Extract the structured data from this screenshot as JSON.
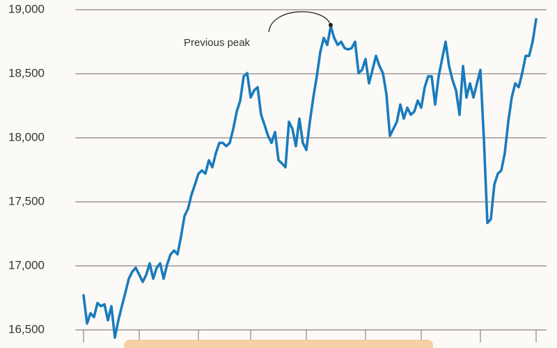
{
  "chart_data": {
    "type": "line",
    "annotations": [
      {
        "text": "Previous peak"
      }
    ],
    "color": "#1a7bbd",
    "grid": true,
    "ylim": [
      16500,
      19000
    ],
    "yticks": [
      {
        "value": 16500,
        "label": "16,500"
      },
      {
        "value": 17000,
        "label": "17,000"
      },
      {
        "value": 17500,
        "label": "17,500"
      },
      {
        "value": 18000,
        "label": "18,000"
      },
      {
        "value": 18500,
        "label": "18,500"
      },
      {
        "value": 19000,
        "label": "19,000"
      }
    ],
    "values": [
      16770,
      16550,
      16630,
      16600,
      16710,
      16685,
      16700,
      16575,
      16685,
      16440,
      16575,
      16685,
      16790,
      16900,
      16955,
      16985,
      16930,
      16875,
      16930,
      17020,
      16900,
      16985,
      17020,
      16900,
      17010,
      17090,
      17120,
      17090,
      17230,
      17390,
      17445,
      17555,
      17635,
      17720,
      17745,
      17720,
      17825,
      17770,
      17880,
      17960,
      17960,
      17935,
      17960,
      18070,
      18205,
      18290,
      18480,
      18505,
      18315,
      18370,
      18395,
      18180,
      18100,
      18015,
      17960,
      18045,
      17825,
      17800,
      17770,
      18125,
      18070,
      17935,
      18150,
      17960,
      17905,
      18125,
      18315,
      18480,
      18670,
      18780,
      18725,
      18870,
      18780,
      18725,
      18750,
      18700,
      18690,
      18700,
      18750,
      18505,
      18530,
      18615,
      18425,
      18530,
      18640,
      18560,
      18505,
      18340,
      18015,
      18070,
      18125,
      18260,
      18150,
      18235,
      18180,
      18205,
      18290,
      18235,
      18395,
      18480,
      18480,
      18260,
      18480,
      18615,
      18750,
      18560,
      18450,
      18370,
      18180,
      18560,
      18315,
      18425,
      18315,
      18425,
      18530,
      17990,
      17335,
      17365,
      17635,
      17720,
      17745,
      17880,
      18125,
      18315,
      18425,
      18395,
      18505,
      18640,
      18640,
      18750,
      18925
    ]
  }
}
